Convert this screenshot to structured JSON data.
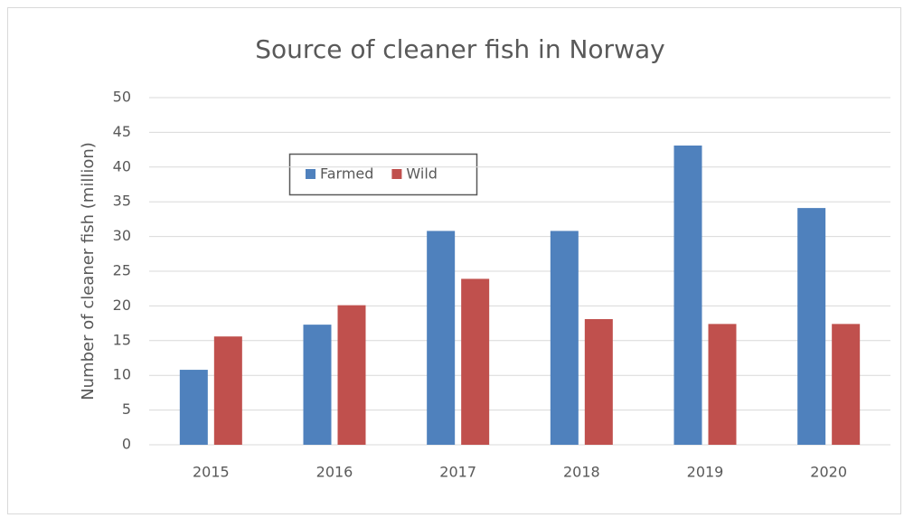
{
  "chart_data": {
    "type": "bar",
    "title": "Source of cleaner fish in Norway",
    "y_label": "Number of cleaner fish (million)",
    "categories": [
      "2015",
      "2016",
      "2017",
      "2018",
      "2019",
      "2020"
    ],
    "series": [
      {
        "name": "Farmed",
        "color": "#4f81bd",
        "values": [
          10.8,
          17.3,
          30.8,
          30.8,
          43.1,
          34.1
        ]
      },
      {
        "name": "Wild",
        "color": "#c0504d",
        "values": [
          15.6,
          20.1,
          23.9,
          18.1,
          17.4,
          17.4
        ]
      }
    ],
    "ylim": [
      0,
      50
    ],
    "yticks": [
      0,
      5,
      10,
      15,
      20,
      25,
      30,
      35,
      40,
      45,
      50
    ],
    "grid": true
  }
}
